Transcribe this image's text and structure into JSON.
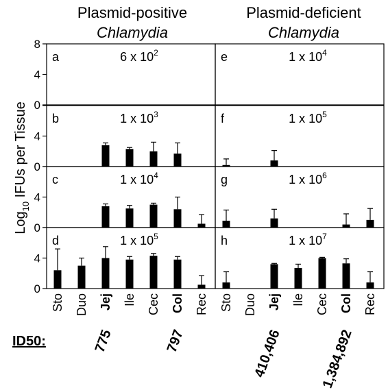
{
  "figure": {
    "left_header": {
      "line1": "Plasmid-positive",
      "line2": "Chlamydia"
    },
    "right_header": {
      "line1": "Plasmid-deficient",
      "line2": "Chlamydia"
    },
    "y_axis_label": {
      "prefix": "Log",
      "subscript": "10",
      "suffix": " IFUs per Tissue"
    },
    "id50_label": "ID50:",
    "id50_values": [
      {
        "value": "775",
        "column": "Jej",
        "group": "left"
      },
      {
        "value": "797",
        "column": "Col",
        "group": "left"
      },
      {
        "value": "410,406",
        "column": "Jej",
        "group": "right"
      },
      {
        "value": "1,384,892",
        "column": "Col",
        "group": "right"
      }
    ],
    "bold_categories": [
      "Jej",
      "Col"
    ]
  },
  "chart_data": {
    "type": "bar",
    "categories": [
      "Sto",
      "Duo",
      "Jej",
      "Ile",
      "Cec",
      "Col",
      "Rec"
    ],
    "yticks": [
      0,
      4,
      8
    ],
    "ylim": [
      0,
      8
    ],
    "panels": [
      {
        "letter": "a",
        "group": "left",
        "row": 0,
        "dose_base": "6 x 10",
        "dose_exp": "2",
        "values": [
          0,
          0,
          0,
          0,
          0,
          0,
          0
        ],
        "errors": [
          0,
          0,
          0,
          0,
          0,
          0,
          0
        ]
      },
      {
        "letter": "b",
        "group": "left",
        "row": 1,
        "dose_base": "1 x 10",
        "dose_exp": "3",
        "values": [
          0,
          0,
          2.8,
          2.3,
          2.0,
          1.7,
          0
        ],
        "errors": [
          0,
          0,
          0.3,
          0.2,
          1.2,
          1.4,
          0
        ]
      },
      {
        "letter": "c",
        "group": "left",
        "row": 2,
        "dose_base": "1 x 10",
        "dose_exp": "4",
        "values": [
          0,
          0,
          2.8,
          2.5,
          3.0,
          2.4,
          0.5
        ],
        "errors": [
          0,
          0,
          0.3,
          0.4,
          0.2,
          1.6,
          1.2
        ]
      },
      {
        "letter": "d",
        "group": "left",
        "row": 3,
        "dose_base": "1 x 10",
        "dose_exp": "5",
        "values": [
          2.4,
          3.0,
          4.0,
          3.8,
          4.3,
          3.8,
          0.5
        ],
        "errors": [
          2.8,
          1.0,
          1.5,
          0.4,
          0.3,
          0.4,
          1.2
        ]
      },
      {
        "letter": "e",
        "group": "right",
        "row": 0,
        "dose_base": "1 x 10",
        "dose_exp": "4",
        "values": [
          0,
          0,
          0,
          0,
          0,
          0,
          0
        ],
        "errors": [
          0,
          0,
          0,
          0,
          0,
          0,
          0
        ]
      },
      {
        "letter": "f",
        "group": "right",
        "row": 1,
        "dose_base": "1 x 10",
        "dose_exp": "5",
        "values": [
          0.2,
          0,
          0.8,
          0,
          0,
          0,
          0
        ],
        "errors": [
          0.8,
          0,
          1.3,
          0,
          0,
          0,
          0
        ]
      },
      {
        "letter": "g",
        "group": "right",
        "row": 2,
        "dose_base": "1 x 10",
        "dose_exp": "6",
        "values": [
          0.9,
          0,
          1.2,
          0,
          0,
          0.4,
          1.0
        ],
        "errors": [
          1.4,
          0,
          1.2,
          0,
          0,
          1.4,
          1.5
        ]
      },
      {
        "letter": "h",
        "group": "right",
        "row": 3,
        "dose_base": "1 x 10",
        "dose_exp": "7",
        "values": [
          0.8,
          0,
          3.2,
          2.7,
          4.0,
          3.3,
          0.8
        ],
        "errors": [
          1.4,
          0,
          0.1,
          0.5,
          0.1,
          0.6,
          1.4
        ]
      }
    ]
  }
}
